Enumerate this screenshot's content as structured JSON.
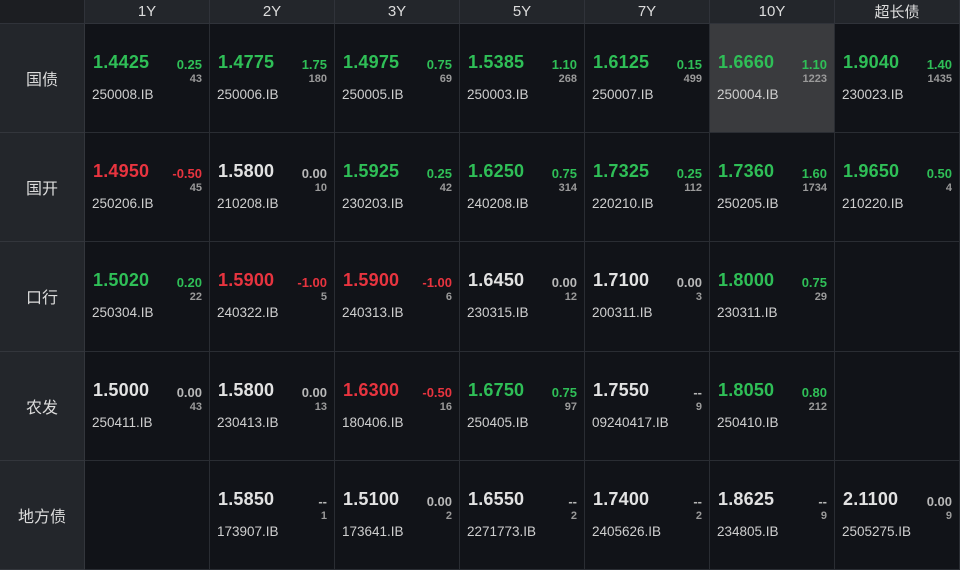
{
  "colors": {
    "up": "#2fbf57",
    "down": "#e8343f",
    "flat": "#e2e2e2",
    "highlight": "#3a3b3e"
  },
  "columns": [
    "1Y",
    "2Y",
    "3Y",
    "5Y",
    "7Y",
    "10Y",
    "超长债"
  ],
  "rows": [
    {
      "label": "国债",
      "cells": [
        {
          "price": "1.4425",
          "change": "0.25",
          "volume": "43",
          "code": "250008.IB",
          "dir": "up"
        },
        {
          "price": "1.4775",
          "change": "1.75",
          "volume": "180",
          "code": "250006.IB",
          "dir": "up"
        },
        {
          "price": "1.4975",
          "change": "0.75",
          "volume": "69",
          "code": "250005.IB",
          "dir": "up"
        },
        {
          "price": "1.5385",
          "change": "1.10",
          "volume": "268",
          "code": "250003.IB",
          "dir": "up"
        },
        {
          "price": "1.6125",
          "change": "0.15",
          "volume": "499",
          "code": "250007.IB",
          "dir": "up"
        },
        {
          "price": "1.6660",
          "change": "1.10",
          "volume": "1223",
          "code": "250004.IB",
          "dir": "up",
          "selected": true
        },
        {
          "price": "1.9040",
          "change": "1.40",
          "volume": "1435",
          "code": "230023.IB",
          "dir": "up"
        }
      ]
    },
    {
      "label": "国开",
      "cells": [
        {
          "price": "1.4950",
          "change": "-0.50",
          "volume": "45",
          "code": "250206.IB",
          "dir": "down"
        },
        {
          "price": "1.5800",
          "change": "0.00",
          "volume": "10",
          "code": "210208.IB",
          "dir": "flat"
        },
        {
          "price": "1.5925",
          "change": "0.25",
          "volume": "42",
          "code": "230203.IB",
          "dir": "up"
        },
        {
          "price": "1.6250",
          "change": "0.75",
          "volume": "314",
          "code": "240208.IB",
          "dir": "up"
        },
        {
          "price": "1.7325",
          "change": "0.25",
          "volume": "112",
          "code": "220210.IB",
          "dir": "up"
        },
        {
          "price": "1.7360",
          "change": "1.60",
          "volume": "1734",
          "code": "250205.IB",
          "dir": "up"
        },
        {
          "price": "1.9650",
          "change": "0.50",
          "volume": "4",
          "code": "210220.IB",
          "dir": "up"
        }
      ]
    },
    {
      "label": "口行",
      "cells": [
        {
          "price": "1.5020",
          "change": "0.20",
          "volume": "22",
          "code": "250304.IB",
          "dir": "up"
        },
        {
          "price": "1.5900",
          "change": "-1.00",
          "volume": "5",
          "code": "240322.IB",
          "dir": "down"
        },
        {
          "price": "1.5900",
          "change": "-1.00",
          "volume": "6",
          "code": "240313.IB",
          "dir": "down"
        },
        {
          "price": "1.6450",
          "change": "0.00",
          "volume": "12",
          "code": "230315.IB",
          "dir": "flat"
        },
        {
          "price": "1.7100",
          "change": "0.00",
          "volume": "3",
          "code": "200311.IB",
          "dir": "flat"
        },
        {
          "price": "1.8000",
          "change": "0.75",
          "volume": "29",
          "code": "230311.IB",
          "dir": "up"
        },
        null
      ]
    },
    {
      "label": "农发",
      "cells": [
        {
          "price": "1.5000",
          "change": "0.00",
          "volume": "43",
          "code": "250411.IB",
          "dir": "flat"
        },
        {
          "price": "1.5800",
          "change": "0.00",
          "volume": "13",
          "code": "230413.IB",
          "dir": "flat"
        },
        {
          "price": "1.6300",
          "change": "-0.50",
          "volume": "16",
          "code": "180406.IB",
          "dir": "down"
        },
        {
          "price": "1.6750",
          "change": "0.75",
          "volume": "97",
          "code": "250405.IB",
          "dir": "up"
        },
        {
          "price": "1.7550",
          "change": "--",
          "volume": "9",
          "code": "09240417.IB",
          "dir": "flat"
        },
        {
          "price": "1.8050",
          "change": "0.80",
          "volume": "212",
          "code": "250410.IB",
          "dir": "up"
        },
        null
      ]
    },
    {
      "label": "地方债",
      "cells": [
        null,
        {
          "price": "1.5850",
          "change": "--",
          "volume": "1",
          "code": "173907.IB",
          "dir": "flat"
        },
        {
          "price": "1.5100",
          "change": "0.00",
          "volume": "2",
          "code": "173641.IB",
          "dir": "flat"
        },
        {
          "price": "1.6550",
          "change": "--",
          "volume": "2",
          "code": "2271773.IB",
          "dir": "flat"
        },
        {
          "price": "1.7400",
          "change": "--",
          "volume": "2",
          "code": "2405626.IB",
          "dir": "flat"
        },
        {
          "price": "1.8625",
          "change": "--",
          "volume": "9",
          "code": "234805.IB",
          "dir": "flat"
        },
        {
          "price": "2.1100",
          "change": "0.00",
          "volume": "9",
          "code": "2505275.IB",
          "dir": "flat"
        }
      ]
    }
  ]
}
